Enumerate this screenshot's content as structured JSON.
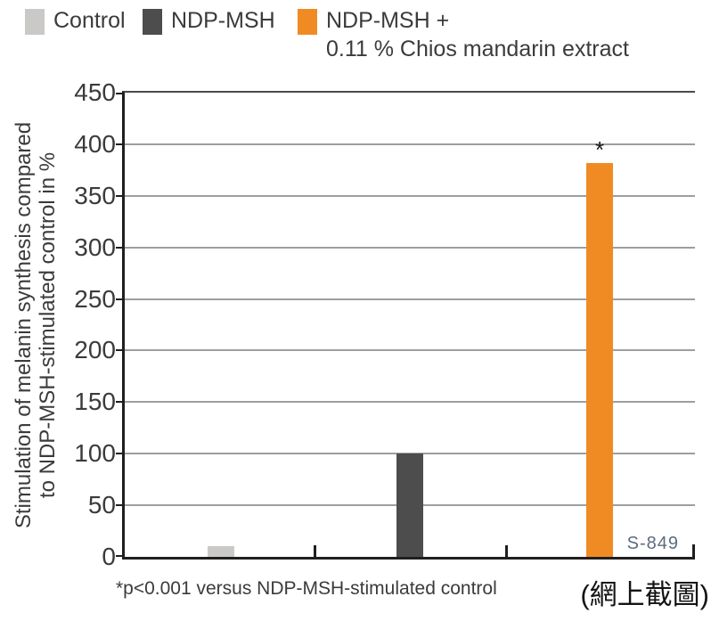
{
  "figure": {
    "caption": "(網上截圖)"
  },
  "chart_data": {
    "type": "bar",
    "title": "",
    "ylabel_line1": "Stimulation of melanin synthesis compared",
    "ylabel_line2": "to NDP-MSH-stimulated control in %",
    "ylim": [
      0,
      450
    ],
    "yticks": [
      0,
      50,
      100,
      150,
      200,
      250,
      300,
      350,
      400,
      450
    ],
    "grid": "horizontal",
    "legend_position": "top",
    "categories": [
      "Control",
      "NDP-MSH",
      "NDP-MSH + 0.11 % Chios mandarin extract"
    ],
    "series": [
      {
        "name": "Control",
        "value": 10,
        "color": "#cbc9c7",
        "annotation": ""
      },
      {
        "name": "NDP-MSH",
        "value": 100,
        "color": "#4d4d4d",
        "annotation": ""
      },
      {
        "name": "NDP-MSH + 0.11 % Chios mandarin extract",
        "value": 382,
        "color": "#f08b24",
        "annotation": "*"
      }
    ],
    "legend": [
      {
        "line1": "Control",
        "line2": "",
        "color": "#cbc9c7"
      },
      {
        "line1": "NDP-MSH",
        "line2": "",
        "color": "#4d4d4d"
      },
      {
        "line1": "NDP-MSH +",
        "line2": "0.11 % Chios mandarin extract",
        "color": "#f08b24"
      }
    ],
    "footnote": "*p<0.001 versus NDP-MSH-stimulated control",
    "watermark": "S-849",
    "colors": {
      "grid": "#9e9e9e",
      "axis": "#1f1f1f",
      "text": "#3b3b3b",
      "watermark": "#5c6d7e"
    }
  }
}
